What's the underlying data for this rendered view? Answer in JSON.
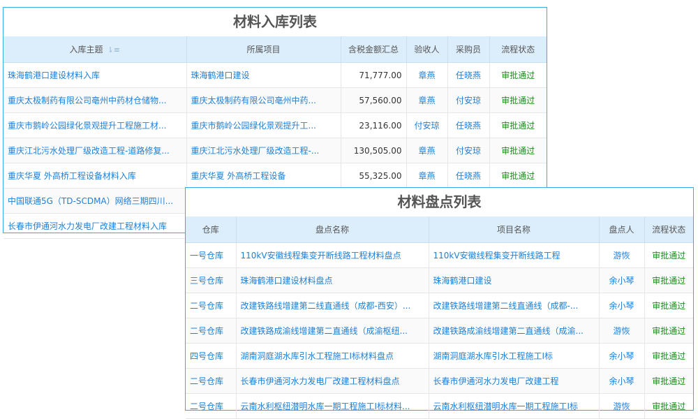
{
  "inbound": {
    "title": "材料入库列表",
    "headers": [
      "入库主题",
      "所属项目",
      "含税金额汇总",
      "验收人",
      "采购员",
      "流程状态"
    ],
    "rows": [
      [
        "珠海鹤港口建设材料入库",
        "珠海鹤港口建设",
        "71,777.00",
        "章燕",
        "任晓燕",
        "审批通过"
      ],
      [
        "重庆太极制药有限公司亳州中药材仓储物...",
        "重庆太极制药有限公司亳州中药...",
        "57,560.00",
        "章燕",
        "付安琼",
        "审批通过"
      ],
      [
        "重庆市鹅岭公园绿化景观提升工程施工材...",
        "重庆市鹅岭公园绿化景观提升工...",
        "23,116.00",
        "付安琼",
        "任晓燕",
        "审批通过"
      ],
      [
        "重庆江北污水处理厂级改造工程-道路修复...",
        "重庆江北污水处理厂级改造工程-...",
        "130,505.00",
        "章燕",
        "付安琼",
        "审批通过"
      ],
      [
        "重庆华夏 外高桥工程设备材料入库",
        "重庆华夏 外高桥工程设备",
        "55,325.00",
        "章燕",
        "任晓燕",
        "审批通过"
      ],
      [
        "中国联通5G（TD-SCDMA）网络三期四川...",
        "",
        "",
        "",
        "",
        ""
      ],
      [
        "长春市伊通河水力发电厂改建工程材料入库",
        "",
        "",
        "",
        "",
        ""
      ]
    ]
  },
  "inventory": {
    "title": "材料盘点列表",
    "headers": [
      "仓库",
      "盘点名称",
      "项目名称",
      "盘点人",
      "流程状态"
    ],
    "rows": [
      [
        "一号仓库",
        "110kV安徽线程集变开断线路工程材料盘点",
        "110kV安徽线程集变开断线路工程",
        "游恢",
        "审批通过"
      ],
      [
        "三号仓库",
        "珠海鹤港口建设材料盘点",
        "珠海鹤港口建设",
        "余小琴",
        "审批通过"
      ],
      [
        "二号仓库",
        "改建铁路线增建第二线直通线（成都-西安）...",
        "改建铁路线增建第二线直通线（成都-...",
        "余小琴",
        "审批通过"
      ],
      [
        "二号仓库",
        "改建铁路成渝线增建第二直通线（成渝枢纽...",
        "改建铁路成渝线增建第二直通线（成渝...",
        "游恢",
        "审批通过"
      ],
      [
        "四号仓库",
        "湖南洞庭湖水库引水工程施工I标材料盘点",
        "湖南洞庭湖水库引水工程施工I标",
        "余小琴",
        "审批通过"
      ],
      [
        "二号仓库",
        "长春市伊通河水力发电厂改建工程材料盘点",
        "长春市伊通河水力发电厂改建工程",
        "余小琴",
        "审批通过"
      ],
      [
        "二号仓库",
        "云南水利枢纽潜明水库一期工程施工I标材料...",
        "云南水利枢纽潜明水库一期工程施工I标",
        "游恢",
        "审批通过"
      ]
    ]
  },
  "colors": {
    "link": "#1f7fd6",
    "approved": "#1b8a1b",
    "border": "#3aa9e9",
    "header_bg": "#dcedfb"
  },
  "icons": {
    "sort": "sort-icon"
  }
}
